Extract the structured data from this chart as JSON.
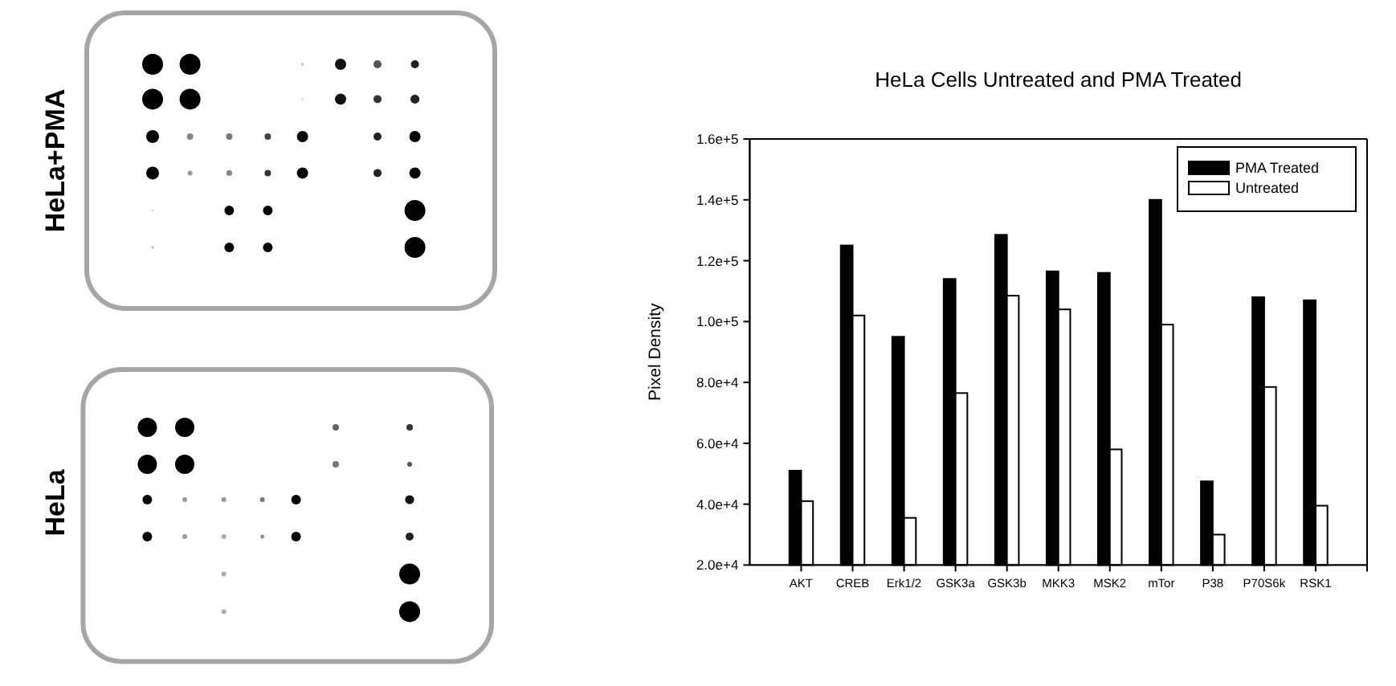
{
  "chart_data": {
    "type": "bar",
    "title": "HeLa Cells Untreated and PMA Treated",
    "ylabel": "Pixel Density",
    "categories": [
      "AKT",
      "CREB",
      "Erk1/2",
      "GSK3a",
      "GSK3b",
      "MKK3",
      "MSK2",
      "mTor",
      "P38",
      "P70S6k",
      "RSK1"
    ],
    "series": [
      {
        "name": "PMA Treated",
        "color": "#000000",
        "values": [
          51000,
          125000,
          95000,
          114000,
          128500,
          116500,
          116000,
          140000,
          47500,
          108000,
          107000
        ]
      },
      {
        "name": "Untreated",
        "color": "#ffffff",
        "values": [
          41000,
          102000,
          35500,
          76500,
          108500,
          104000,
          58000,
          99000,
          30000,
          78500,
          39500
        ]
      }
    ],
    "ylim": [
      20000,
      160000
    ],
    "yticks": [
      {
        "value": 20000,
        "label": "2.0e+4"
      },
      {
        "value": 40000,
        "label": "4.0e+4"
      },
      {
        "value": 60000,
        "label": "6.0e+4"
      },
      {
        "value": 80000,
        "label": "8.0e+4"
      },
      {
        "value": 100000,
        "label": "1.0e+5"
      },
      {
        "value": 120000,
        "label": "1.2e+5"
      },
      {
        "value": 140000,
        "label": "1.4e+5"
      },
      {
        "value": 160000,
        "label": "1.6e+5"
      }
    ],
    "legend": "top right",
    "annotations": [
      "HeLa+PMA",
      "HeLa"
    ]
  }
}
